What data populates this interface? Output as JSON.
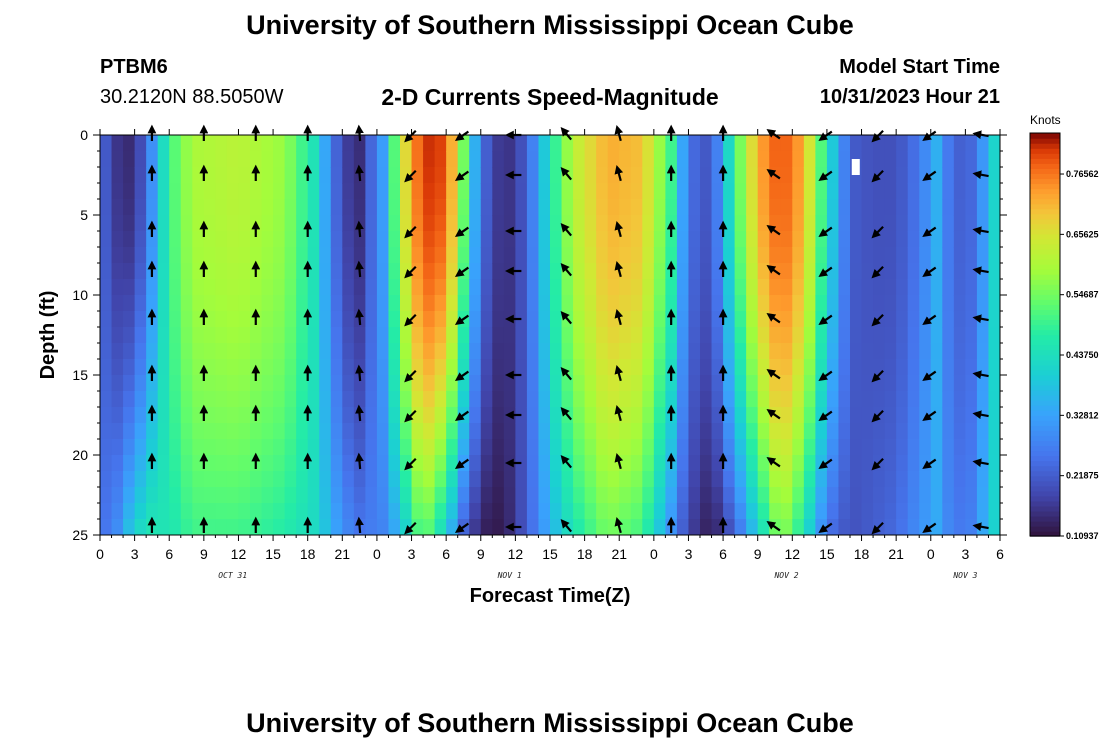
{
  "header": {
    "title": "University of Southern Mississippi Ocean Cube",
    "station_id": "PTBM6",
    "coordinates": "30.2120N  88.5050W",
    "subtitle": "2-D Currents Speed-Magnitude",
    "model_start_label": "Model Start Time",
    "model_start_value": "10/31/2023 Hour 21"
  },
  "footer": {
    "next_title": "University of Southern Mississippi Ocean Cube"
  },
  "colorbar": {
    "units": "Knots",
    "tick_labels": [
      "0.76562",
      "0.65625",
      "0.54687",
      "0.43750",
      "0.32812",
      "0.21875",
      "0.10937"
    ],
    "tick_values": [
      0.76562,
      0.65625,
      0.54687,
      0.4375,
      0.32812,
      0.21875,
      0.10937
    ],
    "range": [
      0.10937,
      0.84
    ]
  },
  "chart_data": {
    "type": "heatmap",
    "title": "2-D Currents Speed-Magnitude",
    "xlabel": "Forecast Time(Z)",
    "ylabel": "Depth (ft)",
    "x_range_hours": [
      0,
      78
    ],
    "y_range_ft": [
      0,
      25
    ],
    "x_tick_labels": [
      "0",
      "3",
      "6",
      "9",
      "12",
      "15",
      "18",
      "21",
      "0",
      "3",
      "6",
      "9",
      "12",
      "15",
      "18",
      "21",
      "0",
      "3",
      "6",
      "9",
      "12",
      "15",
      "18",
      "21",
      "0",
      "3",
      "6"
    ],
    "y_tick_labels": [
      "0",
      "5",
      "10",
      "15",
      "20",
      "25"
    ],
    "y_tick_values": [
      0,
      5,
      10,
      15,
      20,
      25
    ],
    "day_labels": [
      {
        "label": "OCT 31",
        "hour": 11.5
      },
      {
        "label": "NOV 1",
        "hour": 35.5
      },
      {
        "label": "NOV 2",
        "hour": 59.5
      },
      {
        "label": "NOV 3",
        "hour": 75
      }
    ],
    "speed_profile_knots": [
      {
        "hour": 0,
        "surface": 0.24,
        "bottom": 0.24
      },
      {
        "hour": 1.5,
        "surface": 0.16,
        "bottom": 0.3
      },
      {
        "hour": 3,
        "surface": 0.14,
        "bottom": 0.42
      },
      {
        "hour": 4.5,
        "surface": 0.3,
        "bottom": 0.46
      },
      {
        "hour": 6,
        "surface": 0.5,
        "bottom": 0.45
      },
      {
        "hour": 8,
        "surface": 0.6,
        "bottom": 0.5
      },
      {
        "hour": 12,
        "surface": 0.62,
        "bottom": 0.5
      },
      {
        "hour": 16,
        "surface": 0.58,
        "bottom": 0.47
      },
      {
        "hour": 18.5,
        "surface": 0.45,
        "bottom": 0.43
      },
      {
        "hour": 20,
        "surface": 0.28,
        "bottom": 0.36
      },
      {
        "hour": 21,
        "surface": 0.18,
        "bottom": 0.3
      },
      {
        "hour": 22.5,
        "surface": 0.15,
        "bottom": 0.26
      },
      {
        "hour": 24.5,
        "surface": 0.32,
        "bottom": 0.28
      },
      {
        "hour": 26,
        "surface": 0.62,
        "bottom": 0.36
      },
      {
        "hour": 28,
        "surface": 0.82,
        "bottom": 0.55
      },
      {
        "hour": 30,
        "surface": 0.8,
        "bottom": 0.4
      },
      {
        "hour": 31.5,
        "surface": 0.55,
        "bottom": 0.22
      },
      {
        "hour": 33,
        "surface": 0.25,
        "bottom": 0.13
      },
      {
        "hour": 35,
        "surface": 0.14,
        "bottom": 0.12
      },
      {
        "hour": 37,
        "surface": 0.22,
        "bottom": 0.22
      },
      {
        "hour": 39,
        "surface": 0.45,
        "bottom": 0.35
      },
      {
        "hour": 41,
        "surface": 0.62,
        "bottom": 0.45
      },
      {
        "hour": 44,
        "surface": 0.72,
        "bottom": 0.55
      },
      {
        "hour": 47,
        "surface": 0.7,
        "bottom": 0.5
      },
      {
        "hour": 49.5,
        "surface": 0.5,
        "bottom": 0.3
      },
      {
        "hour": 51,
        "surface": 0.25,
        "bottom": 0.18
      },
      {
        "hour": 53,
        "surface": 0.2,
        "bottom": 0.12
      },
      {
        "hour": 55,
        "surface": 0.5,
        "bottom": 0.22
      },
      {
        "hour": 57,
        "surface": 0.72,
        "bottom": 0.4
      },
      {
        "hour": 59,
        "surface": 0.8,
        "bottom": 0.58
      },
      {
        "hour": 61,
        "surface": 0.72,
        "bottom": 0.45
      },
      {
        "hour": 63,
        "surface": 0.45,
        "bottom": 0.25
      },
      {
        "hour": 65,
        "surface": 0.22,
        "bottom": 0.2
      },
      {
        "hour": 67,
        "surface": 0.2,
        "bottom": 0.22
      },
      {
        "hour": 69,
        "surface": 0.2,
        "bottom": 0.24
      },
      {
        "hour": 71,
        "surface": 0.26,
        "bottom": 0.3
      },
      {
        "hour": 72.5,
        "surface": 0.35,
        "bottom": 0.34
      },
      {
        "hour": 74,
        "surface": 0.22,
        "bottom": 0.26
      },
      {
        "hour": 76,
        "surface": 0.24,
        "bottom": 0.28
      },
      {
        "hour": 77,
        "surface": 0.38,
        "bottom": 0.4
      },
      {
        "hour": 78,
        "surface": 0.45,
        "bottom": 0.42
      }
    ],
    "vector_depths_ft": [
      0,
      2.5,
      6,
      8.5,
      11.5,
      15,
      17.5,
      20.5,
      24.5
    ],
    "vector_columns": [
      {
        "hour": 4.5,
        "dir_deg": 0
      },
      {
        "hour": 9,
        "dir_deg": 0
      },
      {
        "hour": 13.5,
        "dir_deg": 0
      },
      {
        "hour": 18,
        "dir_deg": 0
      },
      {
        "hour": 22.5,
        "dir_deg": 355
      },
      {
        "hour": 27,
        "dir_deg": 225
      },
      {
        "hour": 31.5,
        "dir_deg": 235
      },
      {
        "hour": 36,
        "dir_deg": 270
      },
      {
        "hour": 40.5,
        "dir_deg": 320
      },
      {
        "hour": 45,
        "dir_deg": 345
      },
      {
        "hour": 49.5,
        "dir_deg": 0
      },
      {
        "hour": 54,
        "dir_deg": 0
      },
      {
        "hour": 58.5,
        "dir_deg": 305
      },
      {
        "hour": 63,
        "dir_deg": 235
      },
      {
        "hour": 67.5,
        "dir_deg": 225
      },
      {
        "hour": 72,
        "dir_deg": 235
      },
      {
        "hour": 76.5,
        "dir_deg": 280
      }
    ],
    "missing_marker": {
      "hour": 65.5,
      "depth_ft": 2
    }
  }
}
